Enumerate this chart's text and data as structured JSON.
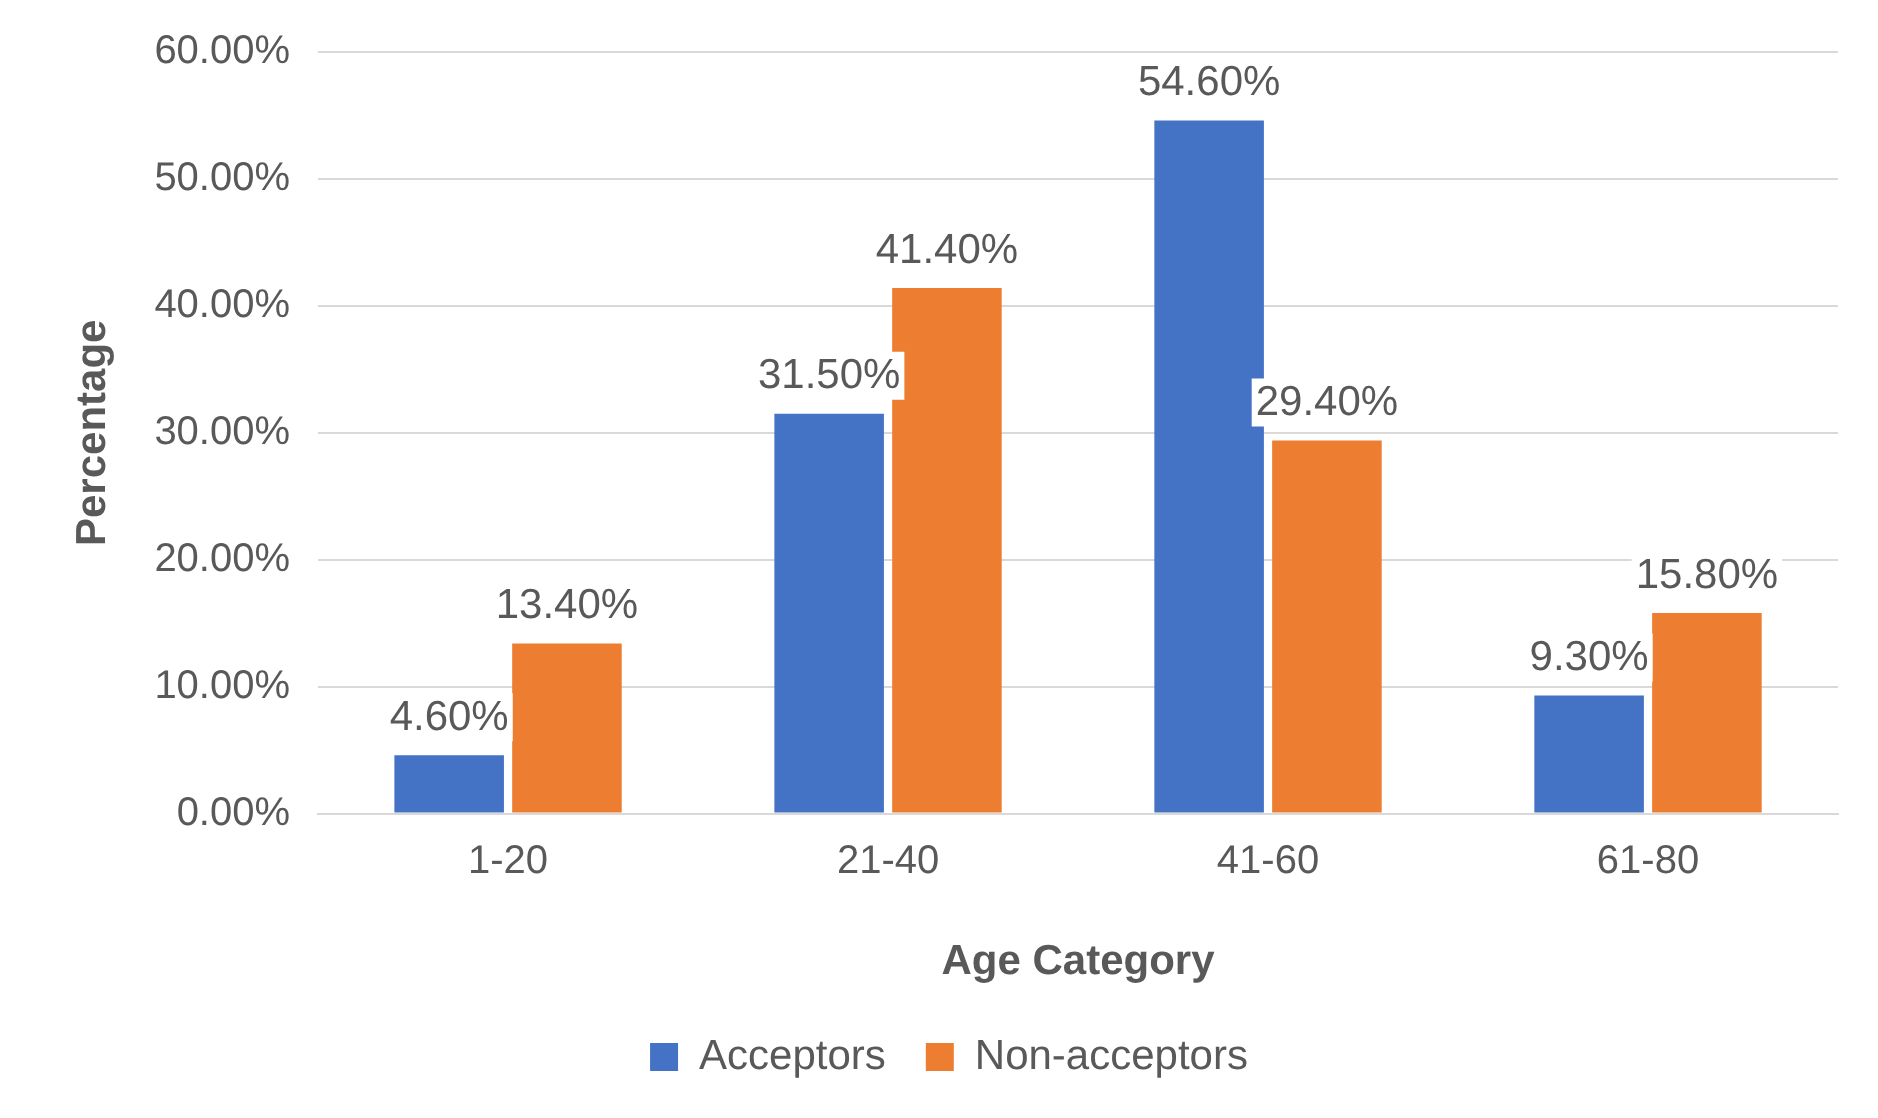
{
  "chart_data": {
    "type": "bar",
    "xlabel": "Age Category",
    "ylabel": "Percentage",
    "categories": [
      "1-20",
      "21-40",
      "41-60",
      "61-80"
    ],
    "series": [
      {
        "name": "Acceptors",
        "color": "#4472c4",
        "values": [
          4.6,
          31.5,
          54.6,
          9.3
        ],
        "value_labels": [
          "4.60%",
          "31.50%",
          "54.60%",
          "9.30%"
        ]
      },
      {
        "name": "Non-acceptors",
        "color": "#ed7d31",
        "values": [
          13.4,
          41.4,
          29.4,
          15.8
        ],
        "value_labels": [
          "13.40%",
          "41.40%",
          "29.40%",
          "15.80%"
        ]
      }
    ],
    "ylim": [
      0,
      60
    ],
    "yticks": [
      {
        "value": 0,
        "label": "0.00%"
      },
      {
        "value": 10,
        "label": "10.00%"
      },
      {
        "value": 20,
        "label": "20.00%"
      },
      {
        "value": 30,
        "label": "30.00%"
      },
      {
        "value": 40,
        "label": "40.00%"
      },
      {
        "value": 50,
        "label": "50.00%"
      },
      {
        "value": 60,
        "label": "60.00%"
      }
    ],
    "grid": "y",
    "legend": "bottom"
  }
}
